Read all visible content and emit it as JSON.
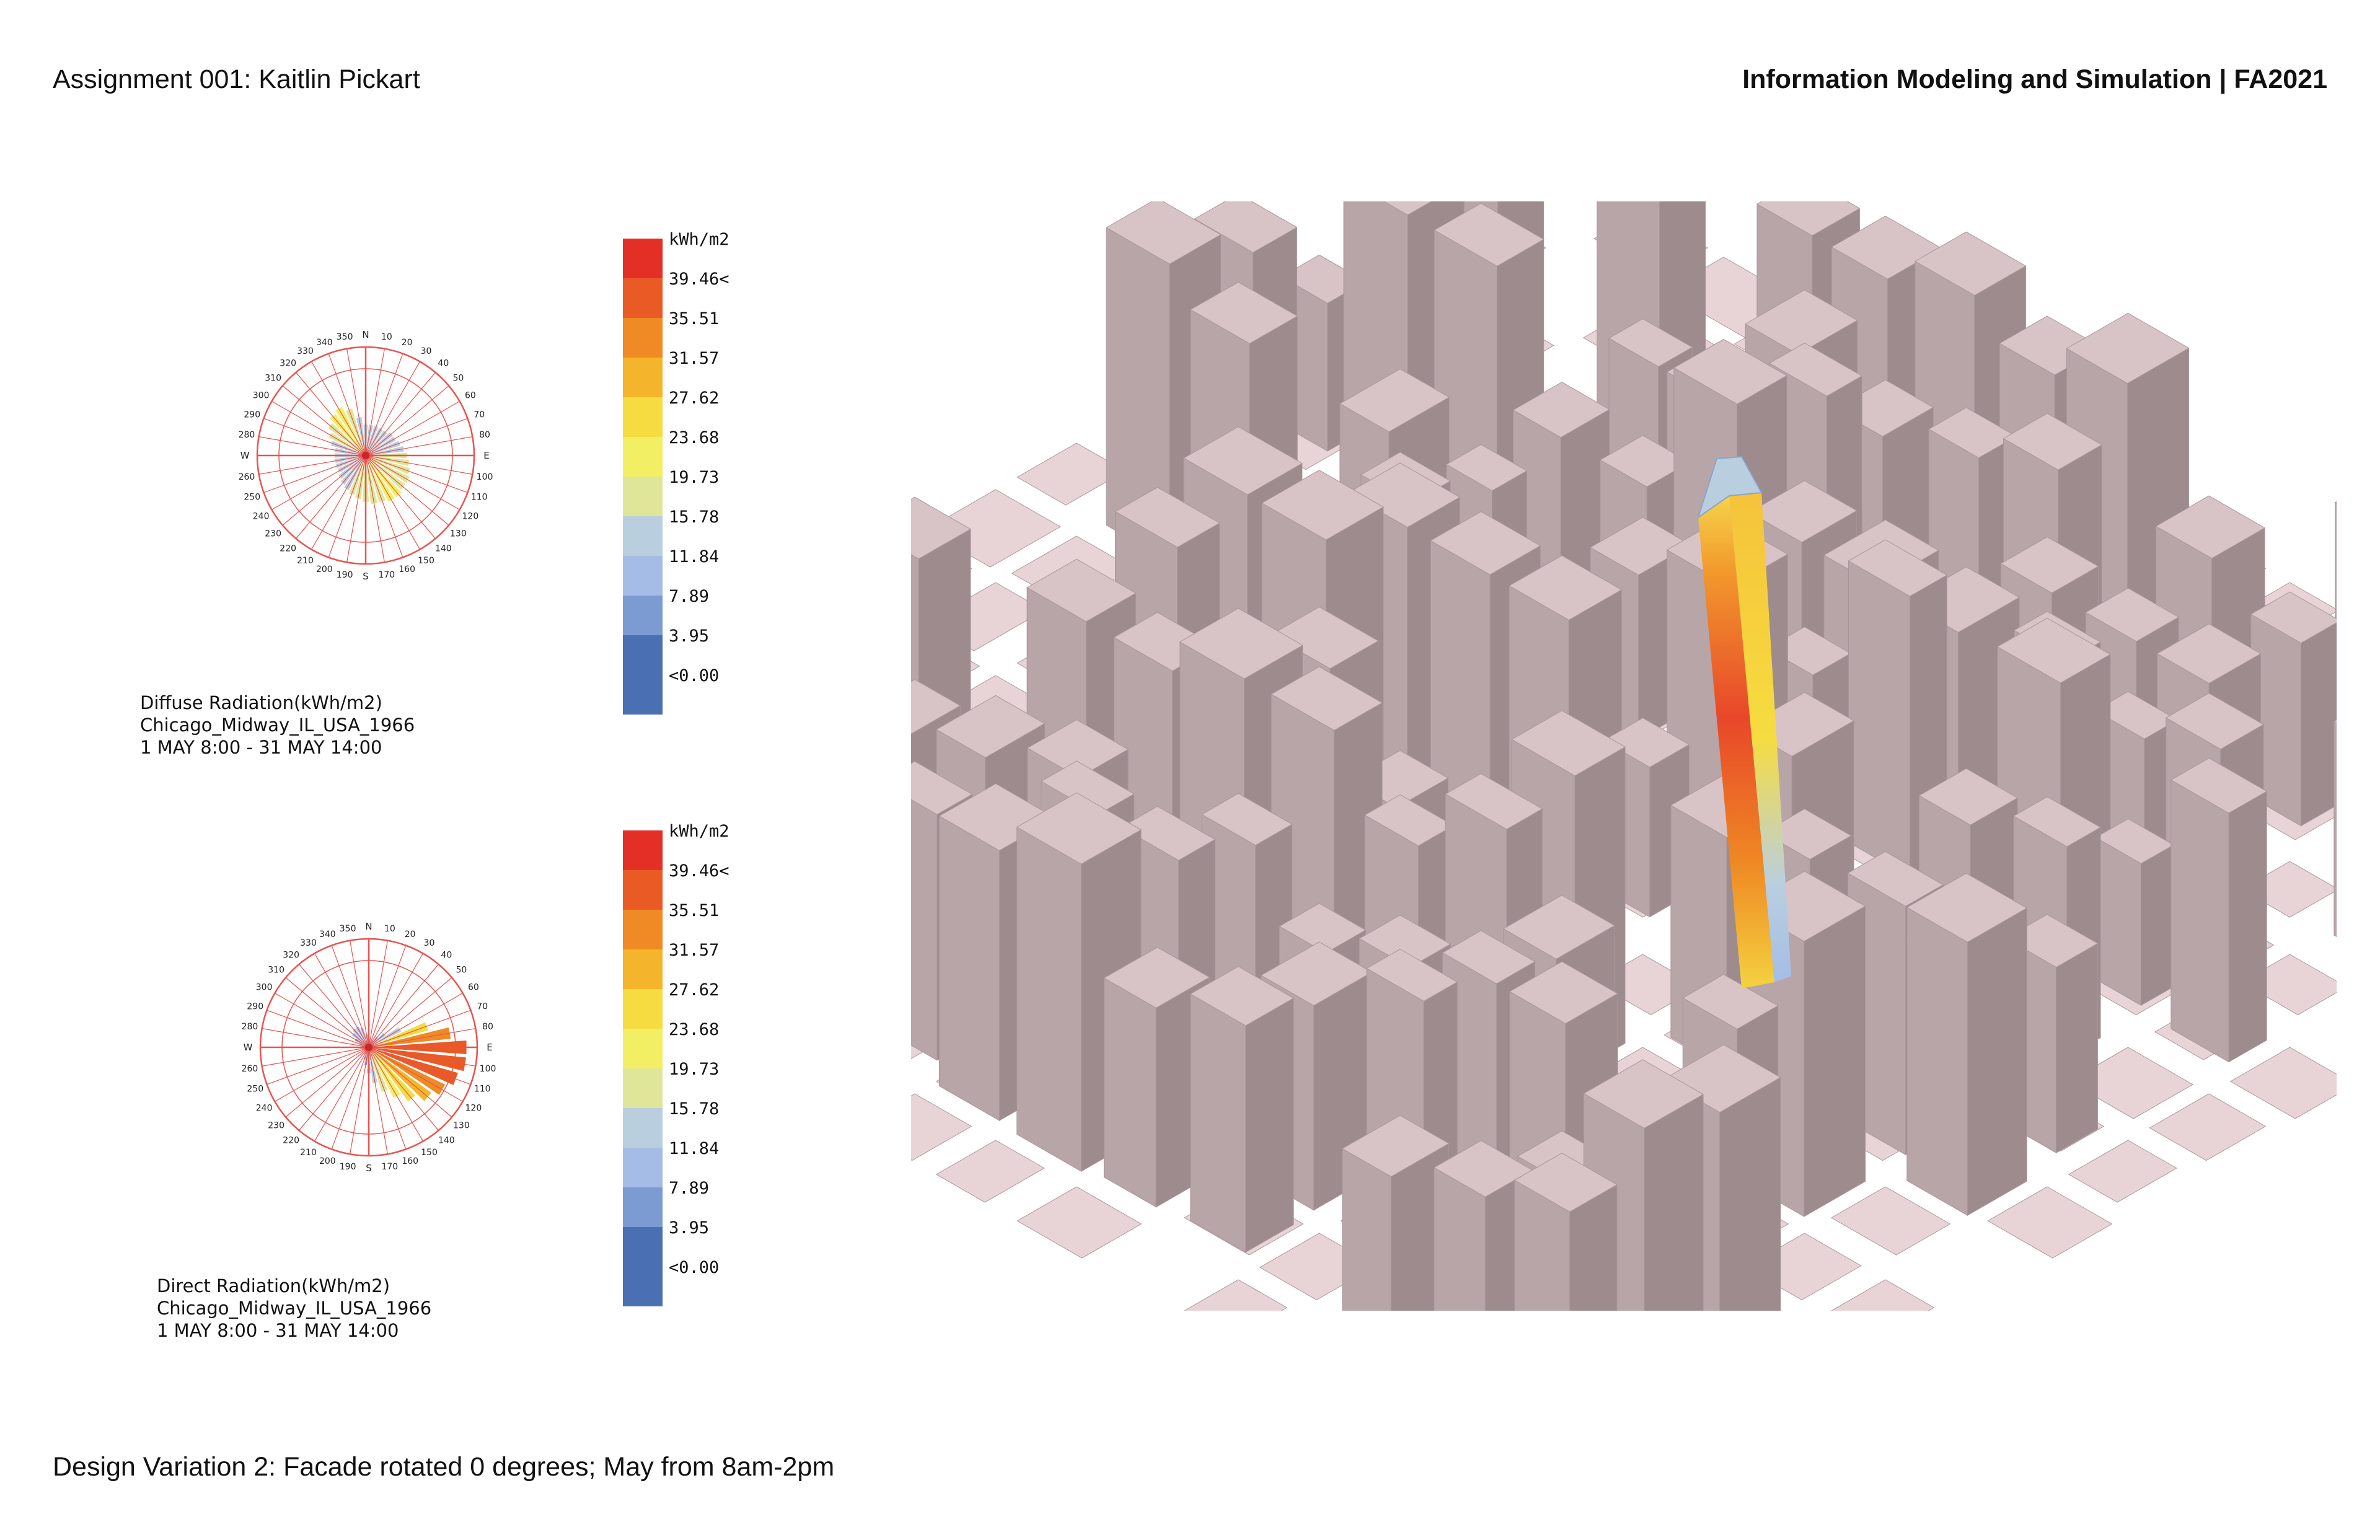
{
  "header": {
    "left": "Assignment 001: Kaitlin Pickart",
    "right": "Information Modeling and Simulation | FA2021"
  },
  "footer": "Design Variation 2: Facade rotated 0 degrees; May from 8am-2pm",
  "legend": {
    "unit": "kWh/m2",
    "entries": [
      {
        "label": "39.46<",
        "color": "#e42f27"
      },
      {
        "label": "35.51",
        "color": "#ea5a24"
      },
      {
        "label": "31.57",
        "color": "#ef8a24"
      },
      {
        "label": "27.62",
        "color": "#f4b52c"
      },
      {
        "label": "23.68",
        "color": "#f6dc40"
      },
      {
        "label": "19.73",
        "color": "#f2ef64"
      },
      {
        "label": "15.78",
        "color": "#dfe69a"
      },
      {
        "label": "11.84",
        "color": "#b9cfe0"
      },
      {
        "label": "7.89",
        "color": "#a5bde6"
      },
      {
        "label": "3.95",
        "color": "#7c9bd3"
      },
      {
        "label": "<0.00",
        "color": "#4a6fb3"
      }
    ]
  },
  "diffuse": {
    "caption_lines": [
      "Diffuse Radiation(kWh/m2)",
      "Chicago_Midway_IL_USA_1966",
      "1 MAY 8:00 - 31 MAY 14:00"
    ],
    "bearing_values": [
      12,
      12,
      12,
      12,
      12,
      13,
      13,
      14,
      15,
      16,
      17,
      18,
      19,
      19,
      20,
      20,
      19,
      19,
      18,
      17,
      16,
      15,
      14,
      13,
      12,
      12,
      12,
      12,
      12,
      14,
      16,
      18,
      20,
      21,
      19,
      15
    ]
  },
  "direct": {
    "caption_lines": [
      "Direct Radiation(kWh/m2)",
      "Chicago_Midway_IL_USA_1966",
      "1 MAY 8:00 - 31 MAY 14:00"
    ],
    "bearing_values": [
      2,
      2,
      3,
      3,
      5,
      8,
      14,
      24,
      32,
      38,
      38,
      36,
      33,
      30,
      26,
      22,
      18,
      14,
      10,
      7,
      5,
      3,
      2,
      2,
      2,
      2,
      2,
      2,
      2,
      4,
      6,
      8,
      9,
      9,
      8,
      5
    ]
  },
  "compass": {
    "cardinals": [
      "N",
      "E",
      "S",
      "W"
    ],
    "degrees": [
      "10",
      "20",
      "30",
      "40",
      "50",
      "60",
      "70",
      "80",
      "100",
      "110",
      "120",
      "130",
      "140",
      "150",
      "160",
      "170",
      "190",
      "200",
      "210",
      "220",
      "230",
      "240",
      "250",
      "260",
      "280",
      "290",
      "300",
      "310",
      "320",
      "330",
      "340",
      "350"
    ]
  },
  "colors": {
    "building": "#d8c3c6",
    "building_side": "#b8a5a8",
    "building_dark": "#9e8b8e",
    "footprint": "#e8d4d6",
    "compass_red": "#e8534e"
  }
}
